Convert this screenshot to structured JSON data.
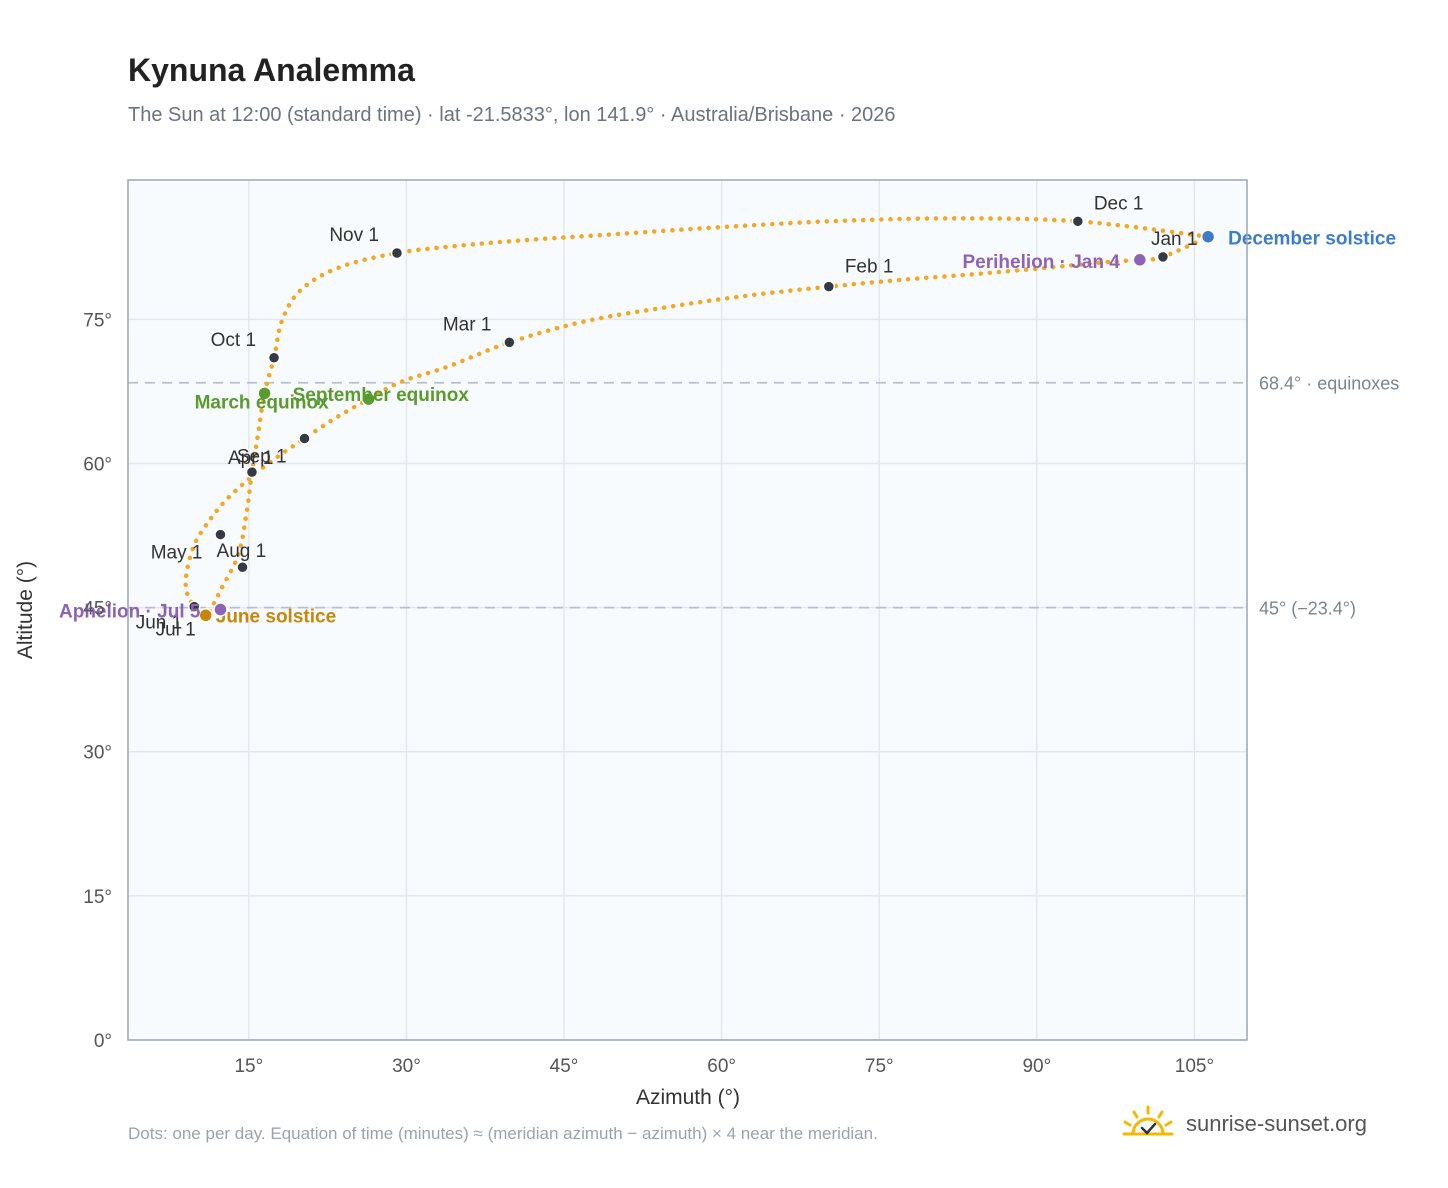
{
  "title": "Kynuna Analemma",
  "subtitle": "The Sun at 12:00 (standard time) · lat -21.5833°, lon 141.9° · Australia/Brisbane · 2026",
  "footnote": "Dots: one per day. Equation of time (minutes) ≈ (meridian azimuth − azimuth) × 4 near the meridian.",
  "brand": {
    "name": "sunrise-sunset.org",
    "logo_icon": "sun-logo-icon"
  },
  "colors": {
    "curve": "#f5a623",
    "month_dot": "#333a44",
    "equinox": "#5a9a2e",
    "june_solstice": "#c8860a",
    "december_solstice": "#3d7cc9",
    "apsis": "#8e62b5",
    "reference": "#b8c0cc",
    "plot_bg": "#f8fbfd",
    "grid": "#e2e8ee",
    "frame": "#9aa6b4"
  },
  "chart_data": {
    "type": "scatter",
    "title": "Kynuna Analemma",
    "xlabel": "Azimuth (°)",
    "ylabel": "Altitude (°)",
    "xlim": [
      3.5,
      110
    ],
    "ylim": [
      0,
      89.5
    ],
    "xticks": [
      15,
      30,
      45,
      60,
      75,
      90,
      105
    ],
    "xtick_labels": [
      "15°",
      "30°",
      "45°",
      "60°",
      "75°",
      "90°",
      "105°"
    ],
    "yticks": [
      0,
      15,
      30,
      45,
      60,
      75
    ],
    "ytick_labels": [
      "0°",
      "15°",
      "30°",
      "45°",
      "60°",
      "75°"
    ],
    "grid": true,
    "series": [
      {
        "path": [
          [
            106.3,
            83.6
          ],
          [
            93.9,
            85.2
          ],
          [
            81.6,
            85.5
          ],
          [
            70.2,
            85.2
          ],
          [
            60.0,
            84.6
          ],
          [
            50.4,
            83.9
          ],
          [
            42.0,
            83.3
          ],
          [
            35.4,
            82.7
          ],
          [
            29.1,
            81.9
          ],
          [
            23.6,
            80.4
          ],
          [
            20.0,
            78.1
          ],
          [
            18.2,
            75.0
          ],
          [
            17.4,
            71.0
          ],
          [
            16.5,
            67.3
          ],
          [
            15.8,
            62.5
          ],
          [
            15.3,
            59.1
          ],
          [
            14.8,
            55.0
          ],
          [
            14.0,
            50.5
          ],
          [
            12.3,
            46.8
          ],
          [
            11.3,
            44.6
          ],
          [
            10.9,
            44.2
          ],
          [
            9.4,
            45.8
          ],
          [
            9.0,
            48.0
          ],
          [
            9.8,
            51.5
          ],
          [
            11.4,
            54.3
          ],
          [
            13.2,
            56.6
          ],
          [
            15.8,
            59.1
          ],
          [
            18.0,
            60.9
          ],
          [
            20.3,
            62.6
          ],
          [
            23.2,
            64.7
          ],
          [
            26.4,
            66.7
          ],
          [
            29.5,
            68.5
          ],
          [
            34.0,
            70.1
          ],
          [
            39.8,
            72.6
          ],
          [
            47.0,
            74.8
          ],
          [
            55.0,
            76.3
          ],
          [
            62.7,
            77.5
          ],
          [
            70.2,
            78.4
          ],
          [
            77.0,
            79.1
          ],
          [
            84.0,
            79.7
          ],
          [
            90.3,
            80.3
          ],
          [
            96.0,
            80.9
          ],
          [
            99.8,
            81.2
          ],
          [
            102.0,
            81.5
          ],
          [
            106.3,
            83.6
          ]
        ]
      }
    ],
    "month_markers": [
      {
        "label": "Jan 1",
        "x": 102.0,
        "y": 81.5
      },
      {
        "label": "Feb 1",
        "x": 70.2,
        "y": 78.4
      },
      {
        "label": "Mar 1",
        "x": 39.8,
        "y": 72.6
      },
      {
        "label": "Apr 1",
        "x": 15.3,
        "y": 59.1
      },
      {
        "label": "May 1",
        "x": 12.3,
        "y": 52.6
      },
      {
        "label": "Jun 1",
        "x": 9.8,
        "y": 45.1
      },
      {
        "label": "Jul 1",
        "x": 10.9,
        "y": 44.2
      },
      {
        "label": "Aug 1",
        "x": 14.4,
        "y": 49.2
      },
      {
        "label": "Sep 1",
        "x": 20.3,
        "y": 62.6
      },
      {
        "label": "Oct 1",
        "x": 17.4,
        "y": 71.0
      },
      {
        "label": "Nov 1",
        "x": 29.1,
        "y": 81.9
      },
      {
        "label": "Dec 1",
        "x": 93.9,
        "y": 85.2
      }
    ],
    "events": [
      {
        "label": "March equinox",
        "x": 16.5,
        "y": 67.3,
        "kind": "equinox"
      },
      {
        "label": "September equinox",
        "x": 26.4,
        "y": 66.7,
        "kind": "equinox"
      },
      {
        "label": "June solstice",
        "x": 10.9,
        "y": 44.2,
        "kind": "june_solstice"
      },
      {
        "label": "December solstice",
        "x": 106.3,
        "y": 83.6,
        "kind": "december_solstice"
      },
      {
        "label": "Perihelion · Jan 4",
        "x": 99.8,
        "y": 81.2,
        "kind": "apsis"
      },
      {
        "label": "Aphelion · Jul 5",
        "x": 12.3,
        "y": 44.8,
        "kind": "apsis"
      }
    ],
    "reference_lines": [
      {
        "y": 68.4,
        "label": "68.4° · equinoxes"
      },
      {
        "y": 45.0,
        "label": "45° (−23.4°)"
      }
    ]
  }
}
